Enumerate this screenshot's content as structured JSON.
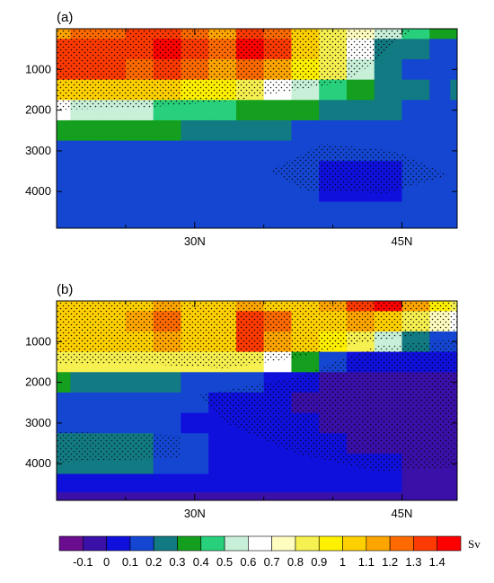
{
  "chart_data": [
    {
      "type": "heatmap",
      "panel_label": "(a)",
      "y_ticks": [
        "1000",
        "2000",
        "3000",
        "4000"
      ],
      "y_tick_values": [
        1000,
        2000,
        3000,
        4000
      ],
      "x_ticks": [
        "30N",
        "45N"
      ],
      "x_tick_values": [
        30,
        45
      ],
      "xlim": [
        20,
        49
      ],
      "ylim": [
        4900,
        0
      ],
      "x_grid": [
        20,
        22,
        24,
        26,
        28,
        30,
        32,
        34,
        36,
        38,
        40,
        42,
        44,
        46,
        48,
        49
      ],
      "y_grid": [
        0,
        500,
        1000,
        1500,
        2000,
        2500,
        3000,
        3500,
        4000,
        4500,
        4900
      ],
      "values": [
        [
          1.1,
          1.2,
          1.2,
          1.3,
          1.3,
          1.2,
          1.1,
          1.3,
          1.2,
          1.0,
          0.8,
          0.7,
          0.5,
          0.4,
          0.3,
          0.3
        ],
        [
          1.3,
          1.3,
          1.3,
          1.3,
          1.4,
          1.3,
          1.2,
          1.4,
          1.3,
          1.0,
          0.8,
          0.6,
          0.2,
          0.2,
          0.1,
          0.1
        ],
        [
          1.3,
          1.3,
          1.3,
          1.2,
          1.3,
          1.2,
          1.1,
          1.2,
          1.1,
          0.9,
          0.8,
          0.5,
          0.2,
          0.1,
          0.1,
          0.1
        ],
        [
          1.0,
          1.0,
          1.0,
          1.0,
          1.0,
          0.9,
          0.9,
          0.8,
          0.6,
          0.5,
          0.4,
          0.3,
          0.2,
          0.2,
          0.1,
          0.2
        ],
        [
          0.6,
          0.5,
          0.5,
          0.5,
          0.4,
          0.4,
          0.4,
          0.3,
          0.3,
          0.3,
          0.2,
          0.2,
          0.2,
          0.1,
          0.1,
          0.1
        ],
        [
          0.3,
          0.3,
          0.3,
          0.3,
          0.3,
          0.2,
          0.2,
          0.2,
          0.2,
          0.1,
          0.1,
          0.1,
          0.1,
          0.1,
          0.1,
          0.1
        ],
        [
          0.1,
          0.1,
          0.1,
          0.1,
          0.1,
          0.1,
          0.1,
          0.1,
          0.1,
          0.1,
          0.1,
          0.1,
          0.1,
          0.1,
          0.1,
          0.1
        ],
        [
          0.1,
          0.1,
          0.1,
          0.1,
          0.1,
          0.1,
          0.1,
          0.1,
          0.1,
          0.1,
          0.0,
          0.0,
          0.0,
          0.1,
          0.1,
          0.1
        ],
        [
          0.1,
          0.1,
          0.1,
          0.1,
          0.1,
          0.1,
          0.1,
          0.1,
          0.1,
          0.1,
          0.0,
          0.0,
          0.0,
          0.1,
          0.1,
          0.1
        ],
        [
          0.1,
          0.1,
          0.1,
          0.1,
          0.1,
          0.1,
          0.1,
          0.1,
          0.1,
          0.1,
          0.1,
          0.1,
          0.1,
          0.1,
          0.1,
          0.1
        ],
        [
          0.1,
          0.1,
          0.1,
          0.1,
          0.1,
          0.1,
          0.1,
          0.1,
          0.1,
          0.1,
          0.1,
          0.1,
          0.1,
          0.1,
          0.1,
          0.1
        ]
      ]
    },
    {
      "type": "heatmap",
      "panel_label": "(b)",
      "y_ticks": [
        "1000",
        "2000",
        "3000",
        "4000"
      ],
      "y_tick_values": [
        1000,
        2000,
        3000,
        4000
      ],
      "x_ticks": [
        "30N",
        "45N"
      ],
      "x_tick_values": [
        30,
        45
      ],
      "xlim": [
        20,
        49
      ],
      "ylim": [
        4900,
        0
      ],
      "x_grid": [
        20,
        22,
        24,
        26,
        28,
        30,
        32,
        34,
        36,
        38,
        40,
        42,
        44,
        46,
        48,
        49
      ],
      "y_grid": [
        0,
        500,
        1000,
        1500,
        2000,
        2500,
        3000,
        3500,
        4000,
        4500,
        4900
      ],
      "values": [
        [
          1.0,
          1.0,
          1.0,
          1.0,
          1.1,
          1.0,
          1.0,
          1.1,
          1.0,
          1.0,
          1.1,
          1.3,
          1.4,
          1.1,
          0.9,
          0.8
        ],
        [
          1.0,
          1.0,
          1.0,
          1.1,
          1.2,
          1.0,
          1.0,
          1.3,
          1.2,
          1.0,
          1.0,
          1.1,
          1.0,
          0.8,
          0.7,
          0.6
        ],
        [
          1.0,
          1.0,
          1.0,
          1.0,
          1.1,
          1.0,
          1.0,
          1.3,
          1.1,
          1.0,
          0.9,
          0.8,
          0.5,
          0.2,
          0.1,
          0.1
        ],
        [
          0.8,
          0.8,
          0.8,
          0.8,
          0.8,
          0.8,
          0.8,
          0.8,
          0.6,
          0.3,
          0.1,
          0.0,
          0.0,
          0.0,
          0.0,
          0.0
        ],
        [
          0.3,
          0.2,
          0.2,
          0.2,
          0.2,
          0.1,
          0.1,
          0.1,
          0.0,
          0.0,
          -0.1,
          -0.1,
          -0.1,
          -0.1,
          -0.1,
          -0.1
        ],
        [
          0.1,
          0.1,
          0.1,
          0.1,
          0.1,
          0.1,
          0.0,
          0.0,
          0.0,
          -0.1,
          -0.1,
          -0.1,
          -0.1,
          -0.1,
          -0.1,
          -0.1
        ],
        [
          0.1,
          0.1,
          0.1,
          0.1,
          0.1,
          0.0,
          0.0,
          0.0,
          0.0,
          0.0,
          -0.1,
          -0.1,
          -0.1,
          -0.1,
          -0.1,
          -0.1
        ],
        [
          0.2,
          0.2,
          0.2,
          0.2,
          0.1,
          0.1,
          0.0,
          0.0,
          0.0,
          0.0,
          0.0,
          -0.1,
          -0.1,
          -0.1,
          -0.1,
          -0.1
        ],
        [
          0.2,
          0.2,
          0.2,
          0.2,
          0.1,
          0.1,
          0.0,
          0.0,
          0.0,
          0.0,
          0.0,
          0.0,
          0.0,
          -0.1,
          -0.1,
          -0.1
        ],
        [
          0.0,
          0.0,
          0.0,
          0.0,
          0.0,
          0.0,
          0.0,
          0.0,
          0.0,
          0.0,
          0.0,
          0.0,
          0.0,
          -0.1,
          -0.1,
          -0.1
        ],
        [
          -0.1,
          -0.1,
          -0.1,
          -0.1,
          -0.1,
          -0.1,
          -0.1,
          -0.1,
          -0.1,
          -0.1,
          -0.1,
          -0.1,
          -0.1,
          -0.1,
          -0.1,
          -0.1
        ]
      ]
    }
  ],
  "colorbar": {
    "unit": "Sv",
    "colors": [
      "#6a0d8f",
      "#3a10a8",
      "#1010dd",
      "#1446d2",
      "#127a82",
      "#14a01e",
      "#28d07c",
      "#c8f0d8",
      "#ffffff",
      "#fffcc0",
      "#f6f050",
      "#fff000",
      "#ffd000",
      "#ffa500",
      "#ff6a00",
      "#ff3a00",
      "#ff0000"
    ],
    "tick_labels": [
      "-0.1",
      "0",
      "0.1",
      "0.2",
      "0.3",
      "0.4",
      "0.5",
      "0.6",
      "0.7",
      "0.8",
      "0.9",
      "1",
      "1.1",
      "1.2",
      "1.3",
      "1.4"
    ],
    "levels": [
      -0.1,
      0,
      0.1,
      0.2,
      0.3,
      0.4,
      0.5,
      0.6,
      0.7,
      0.8,
      0.9,
      1,
      1.1,
      1.2,
      1.3,
      1.4
    ]
  }
}
